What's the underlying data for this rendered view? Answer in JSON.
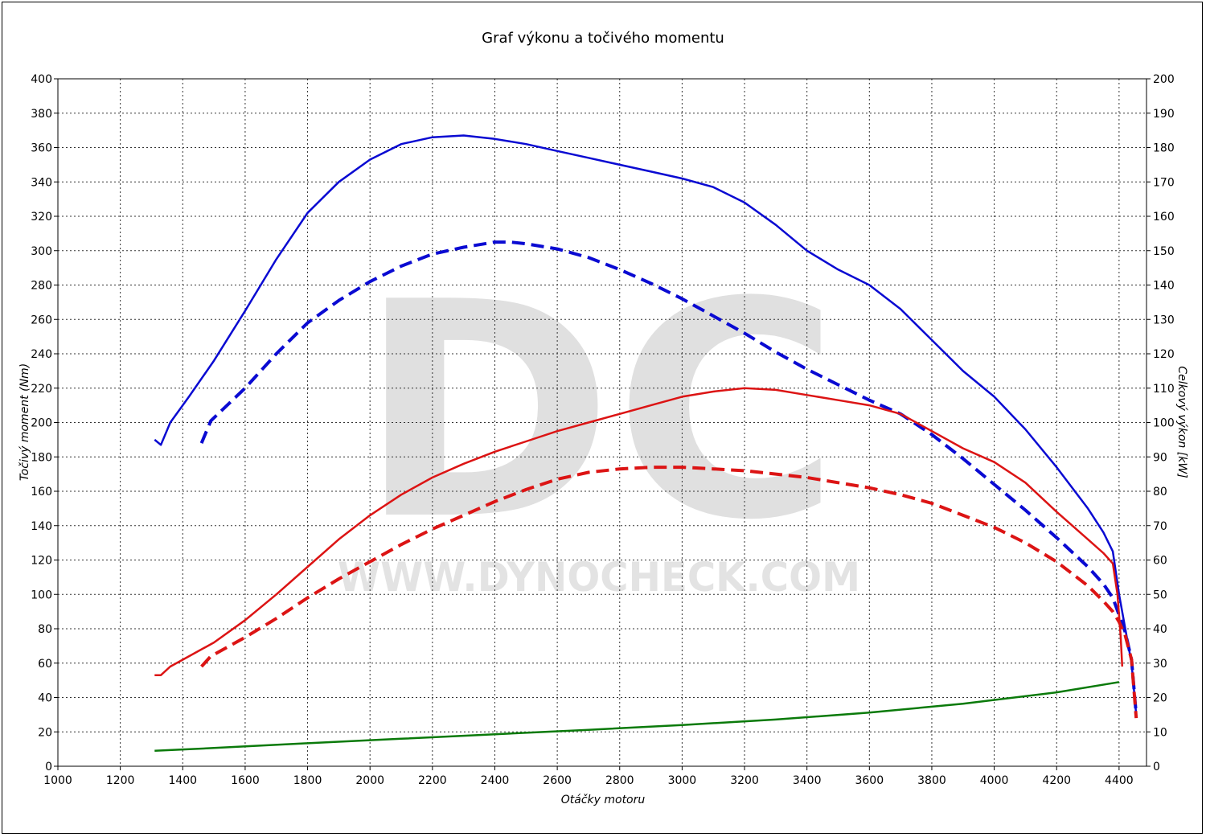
{
  "chart_data": {
    "type": "line",
    "title": "Graf výkonu a točivého momentu",
    "xlabel": "Otáčky motoru",
    "ylabel_left": "Točivý moment (Nm)",
    "ylabel_right": "Celkový výkon [kW]",
    "xlim": [
      1000,
      4500
    ],
    "ylim_left": [
      0,
      400
    ],
    "ylim_right": [
      0,
      200
    ],
    "x_ticks": [
      "1000",
      "1200",
      "1400",
      "1600",
      "1800",
      "2000",
      "2200",
      "2400",
      "2600",
      "2800",
      "3000",
      "3200",
      "3400",
      "3600",
      "3800",
      "4000",
      "4200",
      "4400"
    ],
    "y_left_ticks": [
      "0",
      "20",
      "40",
      "60",
      "80",
      "100",
      "120",
      "140",
      "160",
      "180",
      "200",
      "220",
      "240",
      "260",
      "280",
      "300",
      "320",
      "340",
      "360",
      "380",
      "400"
    ],
    "y_right_ticks": [
      "0",
      "10",
      "20",
      "30",
      "40",
      "50",
      "60",
      "70",
      "80",
      "90",
      "100",
      "110",
      "120",
      "130",
      "140",
      "150",
      "160",
      "170",
      "180",
      "190",
      "200"
    ],
    "grid": true,
    "watermark": {
      "logo": "DC",
      "url": "WWW.DYNOCHECK.COM"
    },
    "series": [
      {
        "color": "#0a0ad2",
        "dash": false,
        "axis": "left",
        "x": [
          1310,
          1330,
          1360,
          1420,
          1500,
          1600,
          1700,
          1800,
          1900,
          2000,
          2100,
          2200,
          2300,
          2400,
          2500,
          2600,
          2700,
          2800,
          2900,
          3000,
          3100,
          3200,
          3300,
          3400,
          3500,
          3600,
          3700,
          3800,
          3900,
          4000,
          4100,
          4200,
          4300,
          4350,
          4380,
          4400,
          4420,
          4440,
          4455
        ],
        "y": [
          190,
          187,
          200,
          215,
          236,
          265,
          295,
          322,
          340,
          353,
          362,
          366,
          367,
          365,
          362,
          358,
          354,
          350,
          346,
          342,
          337,
          328,
          315,
          300,
          289,
          280,
          266,
          248,
          230,
          215,
          196,
          174,
          150,
          136,
          125,
          100,
          80,
          60,
          30
        ]
      },
      {
        "color": "#0a0ad2",
        "dash": true,
        "axis": "left",
        "x": [
          1460,
          1490,
          1600,
          1700,
          1800,
          1900,
          2000,
          2100,
          2200,
          2300,
          2400,
          2450,
          2500,
          2600,
          2700,
          2800,
          2900,
          3000,
          3100,
          3200,
          3300,
          3400,
          3500,
          3600,
          3700,
          3800,
          3900,
          4000,
          4100,
          4200,
          4300,
          4350,
          4380,
          4400,
          4420,
          4440,
          4455
        ],
        "y": [
          188,
          201,
          220,
          240,
          258,
          271,
          282,
          291,
          298,
          302,
          305,
          305,
          304,
          301,
          296,
          289,
          281,
          272,
          262,
          252,
          241,
          231,
          222,
          213,
          205,
          193,
          179,
          164,
          149,
          133,
          116,
          106,
          98,
          88,
          78,
          62,
          30
        ]
      },
      {
        "color": "#dc1414",
        "dash": false,
        "axis": "right",
        "x": [
          1310,
          1330,
          1360,
          1400,
          1500,
          1600,
          1700,
          1800,
          1900,
          2000,
          2100,
          2200,
          2300,
          2400,
          2500,
          2600,
          2700,
          2800,
          2900,
          3000,
          3100,
          3200,
          3300,
          3400,
          3500,
          3600,
          3700,
          3800,
          3900,
          4000,
          4100,
          4200,
          4300,
          4350,
          4380,
          4395,
          4405,
          4410
        ],
        "y": [
          26.5,
          26.5,
          29,
          31,
          36,
          42.5,
          50,
          58,
          66,
          73,
          79,
          84,
          88,
          91.5,
          94.5,
          97.5,
          100,
          102.5,
          105,
          107.5,
          109,
          110,
          109.5,
          108,
          106.5,
          105,
          102.5,
          97.5,
          92.5,
          88.5,
          82.5,
          74,
          66,
          62,
          59,
          50,
          38,
          29
        ]
      },
      {
        "color": "#dc1414",
        "dash": true,
        "axis": "right",
        "x": [
          1460,
          1490,
          1600,
          1700,
          1800,
          1900,
          2000,
          2100,
          2200,
          2300,
          2400,
          2500,
          2600,
          2700,
          2800,
          2900,
          3000,
          3100,
          3200,
          3300,
          3400,
          3500,
          3600,
          3700,
          3800,
          3900,
          4000,
          4100,
          4200,
          4300,
          4350,
          4380,
          4400,
          4420,
          4440,
          4455
        ],
        "y": [
          29,
          32,
          37.5,
          43,
          49,
          54.5,
          59.5,
          64.5,
          69,
          73,
          77,
          80.5,
          83.5,
          85.5,
          86.5,
          87,
          87,
          86.5,
          86,
          85,
          84,
          82.5,
          81,
          79,
          76.5,
          73,
          69.5,
          65,
          59.5,
          52.5,
          48,
          45,
          42,
          38,
          31,
          14
        ]
      },
      {
        "color": "#0a7a0a",
        "dash": false,
        "axis": "right",
        "x": [
          1310,
          1500,
          1800,
          2100,
          2400,
          2700,
          3000,
          3300,
          3600,
          3900,
          4200,
          4400
        ],
        "y": [
          4.5,
          5.3,
          6.7,
          8.0,
          9.3,
          10.6,
          12.0,
          13.6,
          15.6,
          18.2,
          21.5,
          24.5
        ]
      }
    ]
  }
}
